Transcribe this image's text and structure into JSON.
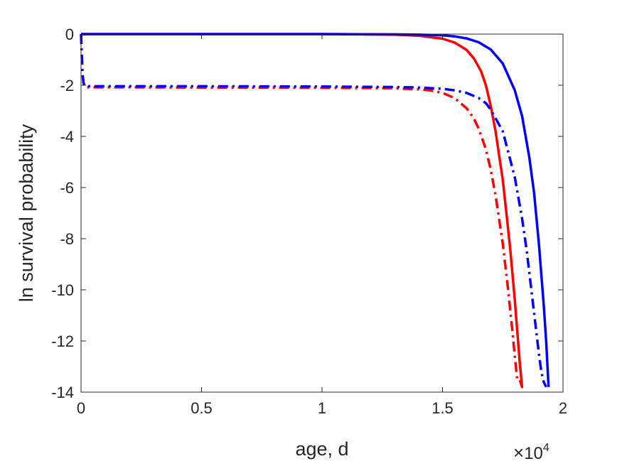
{
  "chart_data": {
    "type": "line",
    "xlabel": "age, d",
    "ylabel": "ln survival probability",
    "x_multiplier": {
      "base": "10",
      "exponent": "4"
    },
    "xlim": [
      0,
      20000
    ],
    "ylim": [
      -14,
      0
    ],
    "xticks": [
      0,
      5000,
      10000,
      15000,
      20000
    ],
    "xtick_labels": [
      "0",
      "0.5",
      "1",
      "1.5",
      "2"
    ],
    "yticks": [
      0,
      -2,
      -4,
      -6,
      -8,
      -10,
      -12,
      -14
    ],
    "ytick_labels": [
      "0",
      "-2",
      "-4",
      "-6",
      "-8",
      "-10",
      "-12",
      "-14"
    ],
    "grid": false,
    "legend": "none",
    "series": [
      {
        "color": "#ff0000",
        "style": "dashdot",
        "x": [
          0,
          30,
          60,
          100,
          150,
          200,
          300,
          500,
          2000,
          5000,
          8000,
          10000,
          12000,
          13000,
          14000,
          14500,
          15000,
          15500,
          16000,
          16300,
          16500,
          16800,
          17000,
          17200,
          17500,
          17700,
          17900,
          18000,
          18100,
          18200,
          18300,
          18350
        ],
        "y": [
          0,
          -0.8,
          -1.5,
          -1.9,
          -2.05,
          -2.08,
          -2.08,
          -2.08,
          -2.08,
          -2.09,
          -2.09,
          -2.1,
          -2.11,
          -2.12,
          -2.16,
          -2.2,
          -2.3,
          -2.5,
          -2.9,
          -3.3,
          -3.7,
          -4.5,
          -5.3,
          -6.3,
          -8.2,
          -9.8,
          -11.6,
          -12.6,
          -13.5,
          -13.5,
          -13.8,
          -13.8
        ]
      },
      {
        "color": "#ff0000",
        "style": "solid",
        "x": [
          0,
          5000,
          10000,
          13000,
          14000,
          15000,
          15500,
          16000,
          16300,
          16600,
          16800,
          17000,
          17200,
          17500,
          17800,
          18000,
          18100,
          18200,
          18300
        ],
        "y": [
          0,
          0,
          0,
          -0.02,
          -0.06,
          -0.18,
          -0.33,
          -0.62,
          -0.95,
          -1.45,
          -2.0,
          -2.8,
          -3.8,
          -5.7,
          -8.3,
          -10.4,
          -11.6,
          -12.8,
          -13.8
        ]
      },
      {
        "color": "#0000ff",
        "style": "dashdot",
        "x": [
          0,
          30,
          60,
          100,
          150,
          200,
          300,
          500,
          2000,
          5000,
          10000,
          13000,
          14000,
          15000,
          15500,
          16000,
          16500,
          16800,
          17000,
          17500,
          18000,
          18300,
          18500,
          18800,
          19000,
          19100,
          19200,
          19300
        ],
        "y": [
          0,
          -0.8,
          -1.5,
          -1.9,
          -2.02,
          -2.04,
          -2.04,
          -2.04,
          -2.04,
          -2.04,
          -2.05,
          -2.07,
          -2.09,
          -2.14,
          -2.2,
          -2.3,
          -2.5,
          -2.7,
          -2.95,
          -3.8,
          -5.6,
          -7.2,
          -8.5,
          -10.9,
          -12.5,
          -13.2,
          -13.6,
          -13.8
        ]
      },
      {
        "color": "#0000ff",
        "style": "solid",
        "x": [
          0,
          5000,
          10000,
          13000,
          14000,
          15000,
          15500,
          16000,
          16500,
          17000,
          17500,
          18000,
          18300,
          18600,
          18800,
          19000,
          19200,
          19300,
          19400
        ],
        "y": [
          0,
          0,
          0,
          -0.01,
          -0.02,
          -0.05,
          -0.09,
          -0.17,
          -0.32,
          -0.6,
          -1.15,
          -2.2,
          -3.2,
          -4.8,
          -6.2,
          -8.2,
          -10.6,
          -12.0,
          -13.8
        ]
      }
    ]
  }
}
